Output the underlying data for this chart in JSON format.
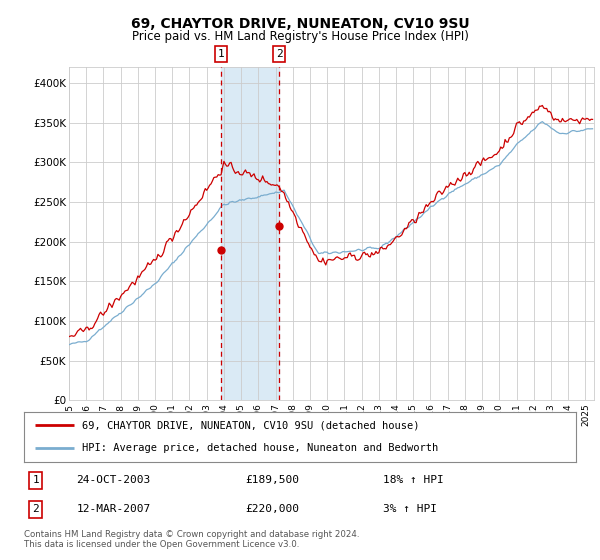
{
  "title": "69, CHAYTOR DRIVE, NUNEATON, CV10 9SU",
  "subtitle": "Price paid vs. HM Land Registry's House Price Index (HPI)",
  "legend_line1": "69, CHAYTOR DRIVE, NUNEATON, CV10 9SU (detached house)",
  "legend_line2": "HPI: Average price, detached house, Nuneaton and Bedworth",
  "footnote": "Contains HM Land Registry data © Crown copyright and database right 2024.\nThis data is licensed under the Open Government Licence v3.0.",
  "sale1_label": "1",
  "sale1_date": "24-OCT-2003",
  "sale1_price": "£189,500",
  "sale1_hpi": "18% ↑ HPI",
  "sale2_label": "2",
  "sale2_date": "12-MAR-2007",
  "sale2_price": "£220,000",
  "sale2_hpi": "3% ↑ HPI",
  "sale1_x": 2003.82,
  "sale2_x": 2007.21,
  "sale1_y": 189500,
  "sale2_y": 220000,
  "vline1_x": 2003.82,
  "vline2_x": 2007.21,
  "shade_x1": 2003.82,
  "shade_x2": 2007.21,
  "xlim": [
    1995.0,
    2025.5
  ],
  "ylim": [
    0,
    420000
  ],
  "yticks": [
    0,
    50000,
    100000,
    150000,
    200000,
    250000,
    300000,
    350000,
    400000
  ],
  "ytick_labels": [
    "£0",
    "£50K",
    "£100K",
    "£150K",
    "£200K",
    "£250K",
    "£300K",
    "£350K",
    "£400K"
  ],
  "xticks": [
    1995,
    1996,
    1997,
    1998,
    1999,
    2000,
    2001,
    2002,
    2003,
    2004,
    2005,
    2006,
    2007,
    2008,
    2009,
    2010,
    2011,
    2012,
    2013,
    2014,
    2015,
    2016,
    2017,
    2018,
    2019,
    2020,
    2021,
    2022,
    2023,
    2024,
    2025
  ],
  "hpi_color": "#7aadcf",
  "price_color": "#cc0000",
  "shade_color": "#daeaf5",
  "background_color": "#ffffff",
  "grid_color": "#cccccc",
  "noise_seed": 42
}
